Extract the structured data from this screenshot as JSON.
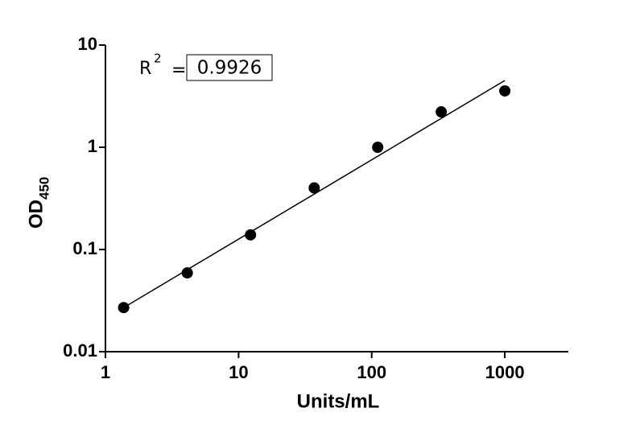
{
  "chart_data": {
    "type": "scatter",
    "xlabel": "Units/mL",
    "ylabel": "OD",
    "ylabel_sub": "450",
    "x": [
      1.37,
      4.12,
      12.3,
      37,
      111,
      333,
      1000
    ],
    "series": [
      {
        "color": "#000000",
        "values": [
          0.027,
          0.059,
          0.139,
          0.4,
          1.0,
          2.22,
          3.56
        ]
      }
    ],
    "fit": {
      "x": [
        1.37,
        1000
      ],
      "y": [
        0.027,
        4.5
      ]
    },
    "annotation": {
      "label": "R",
      "superscript": "2",
      "equals": "=",
      "value": "0.9926"
    },
    "xscale": "log",
    "yscale": "log",
    "xlim": [
      1,
      3000
    ],
    "ylim": [
      0.01,
      10
    ],
    "xticks": [
      1,
      10,
      100,
      1000
    ],
    "yticks": [
      0.01,
      0.1,
      1,
      10
    ]
  }
}
